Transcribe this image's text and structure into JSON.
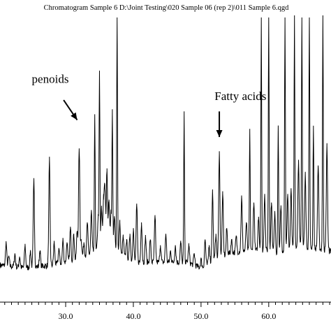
{
  "chart_data": {
    "type": "line",
    "title": "Chromatogram Sample 6 D:\\Joint Testing\\020 Sample 06 (rep 2)\\011 Sample 6.qgd",
    "xlabel": "",
    "ylabel": "",
    "xlim": [
      20.3,
      69.2
    ],
    "ylim": [
      0,
      100
    ],
    "x_ticks": [
      20.0,
      30.0,
      40.0,
      50.0,
      60.0
    ],
    "x_tick_labels": [
      "30.0",
      "40.0",
      "50.0",
      "60.0"
    ],
    "x_minor_step": 1.0,
    "grid": false,
    "baseline": [
      [
        20.3,
        13.0
      ],
      [
        24.0,
        12.0
      ],
      [
        28.0,
        13.0
      ],
      [
        32.0,
        15.0
      ],
      [
        36.0,
        20.0
      ],
      [
        37.0,
        18.0
      ],
      [
        40.0,
        14.0
      ],
      [
        44.0,
        14.0
      ],
      [
        48.0,
        14.0
      ],
      [
        50.0,
        12.0
      ],
      [
        54.0,
        17.0
      ],
      [
        56.0,
        18.0
      ],
      [
        60.0,
        18.0
      ],
      [
        62.0,
        17.0
      ],
      [
        64.0,
        20.0
      ],
      [
        69.2,
        18.0
      ]
    ],
    "peaks": [
      {
        "x": 21.2,
        "y": 21
      },
      {
        "x": 21.6,
        "y": 16
      },
      {
        "x": 22.5,
        "y": 17
      },
      {
        "x": 23.2,
        "y": 16
      },
      {
        "x": 24.0,
        "y": 20
      },
      {
        "x": 24.8,
        "y": 18
      },
      {
        "x": 25.3,
        "y": 43
      },
      {
        "x": 26.2,
        "y": 18
      },
      {
        "x": 27.6,
        "y": 50
      },
      {
        "x": 28.3,
        "y": 21
      },
      {
        "x": 29.0,
        "y": 19
      },
      {
        "x": 29.6,
        "y": 22
      },
      {
        "x": 30.2,
        "y": 21
      },
      {
        "x": 30.7,
        "y": 26
      },
      {
        "x": 31.2,
        "y": 24
      },
      {
        "x": 31.7,
        "y": 25
      },
      {
        "x": 32.0,
        "y": 54
      },
      {
        "x": 32.3,
        "y": 22
      },
      {
        "x": 32.7,
        "y": 21
      },
      {
        "x": 33.2,
        "y": 28
      },
      {
        "x": 33.8,
        "y": 32
      },
      {
        "x": 34.3,
        "y": 66
      },
      {
        "x": 34.8,
        "y": 30
      },
      {
        "x": 35.0,
        "y": 80
      },
      {
        "x": 35.3,
        "y": 33
      },
      {
        "x": 35.6,
        "y": 36
      },
      {
        "x": 35.8,
        "y": 40
      },
      {
        "x": 36.1,
        "y": 47
      },
      {
        "x": 36.4,
        "y": 36
      },
      {
        "x": 36.7,
        "y": 32
      },
      {
        "x": 36.9,
        "y": 66
      },
      {
        "x": 37.2,
        "y": 30
      },
      {
        "x": 37.6,
        "y": 100
      },
      {
        "x": 38.0,
        "y": 28
      },
      {
        "x": 38.5,
        "y": 23
      },
      {
        "x": 39.0,
        "y": 22
      },
      {
        "x": 39.5,
        "y": 24
      },
      {
        "x": 40.0,
        "y": 26
      },
      {
        "x": 40.5,
        "y": 34
      },
      {
        "x": 41.2,
        "y": 28
      },
      {
        "x": 41.8,
        "y": 23
      },
      {
        "x": 42.5,
        "y": 22
      },
      {
        "x": 43.2,
        "y": 30
      },
      {
        "x": 44.0,
        "y": 20
      },
      {
        "x": 44.8,
        "y": 24
      },
      {
        "x": 45.5,
        "y": 18
      },
      {
        "x": 46.2,
        "y": 20
      },
      {
        "x": 47.0,
        "y": 21
      },
      {
        "x": 47.5,
        "y": 66
      },
      {
        "x": 48.2,
        "y": 20
      },
      {
        "x": 49.0,
        "y": 17
      },
      {
        "x": 50.0,
        "y": 15
      },
      {
        "x": 50.6,
        "y": 22
      },
      {
        "x": 51.2,
        "y": 20
      },
      {
        "x": 51.7,
        "y": 39
      },
      {
        "x": 52.2,
        "y": 24
      },
      {
        "x": 52.7,
        "y": 53
      },
      {
        "x": 53.2,
        "y": 38
      },
      {
        "x": 53.8,
        "y": 26
      },
      {
        "x": 54.5,
        "y": 22
      },
      {
        "x": 55.2,
        "y": 23
      },
      {
        "x": 56.0,
        "y": 37
      },
      {
        "x": 56.7,
        "y": 28
      },
      {
        "x": 57.2,
        "y": 60
      },
      {
        "x": 57.8,
        "y": 35
      },
      {
        "x": 58.5,
        "y": 30
      },
      {
        "x": 58.9,
        "y": 100
      },
      {
        "x": 59.4,
        "y": 38
      },
      {
        "x": 60.0,
        "y": 100
      },
      {
        "x": 60.4,
        "y": 35
      },
      {
        "x": 60.9,
        "y": 32
      },
      {
        "x": 61.4,
        "y": 62
      },
      {
        "x": 61.8,
        "y": 34
      },
      {
        "x": 62.4,
        "y": 100
      },
      {
        "x": 62.8,
        "y": 38
      },
      {
        "x": 63.3,
        "y": 40
      },
      {
        "x": 63.8,
        "y": 100
      },
      {
        "x": 64.4,
        "y": 50
      },
      {
        "x": 64.9,
        "y": 100
      },
      {
        "x": 65.4,
        "y": 45
      },
      {
        "x": 66.0,
        "y": 100
      },
      {
        "x": 66.6,
        "y": 62
      },
      {
        "x": 67.3,
        "y": 48
      },
      {
        "x": 68.0,
        "y": 100
      },
      {
        "x": 68.6,
        "y": 55
      }
    ],
    "annotations": [
      {
        "text": "penoids",
        "x": 25.0,
        "y": 77,
        "arrow_from": [
          29.7,
          71
        ],
        "arrow_to": [
          31.7,
          64
        ]
      },
      {
        "text": "Fatty acids",
        "x": 52.0,
        "y": 71,
        "arrow_from": [
          52.7,
          67
        ],
        "arrow_to": [
          52.7,
          58
        ]
      }
    ]
  }
}
